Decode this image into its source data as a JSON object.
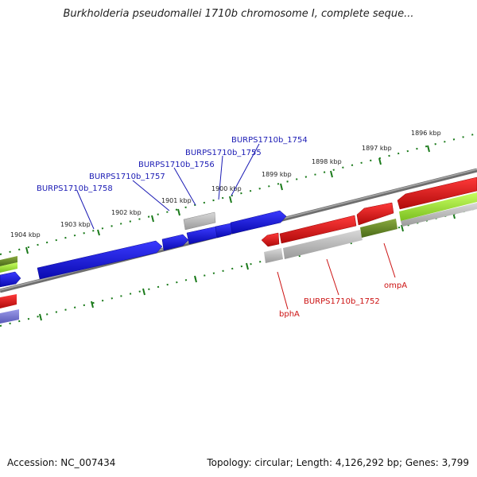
{
  "title": "Burkholderia pseudomallei 1710b chromosome I, complete seque...",
  "footer": {
    "accession": "Accession: NC_007434",
    "summary": "Topology: circular; Length: 4,126,292 bp; Genes: 3,799"
  },
  "scale": {
    "ticks": [
      "1904 kbp",
      "1903 kbp",
      "1902 kbp",
      "1901 kbp",
      "1900 kbp",
      "1899 kbp",
      "1898 kbp",
      "1897 kbp",
      "1896 kbp"
    ]
  },
  "genes_top": [
    {
      "label": "BURPS1710b_1758"
    },
    {
      "label": "BURPS1710b_1757"
    },
    {
      "label": "BURPS1710b_1756"
    },
    {
      "label": "BURPS1710b_1755"
    },
    {
      "label": "BURPS1710b_1754"
    }
  ],
  "genes_bottom": [
    {
      "label": "bphA"
    },
    {
      "label": "BURPS1710b_1752"
    },
    {
      "label": "ompA"
    }
  ],
  "colors": {
    "forward_gene": "#1a1ad6",
    "reverse_gene": "#e01010",
    "backbone": "#808080",
    "tick": "#1a7a1a",
    "pseudo_gene": "#b0b0b0",
    "rna_gene": "#7fc030",
    "olive_gene": "#6b8a2a",
    "label_top": "#1a1ab4",
    "label_bottom": "#cc1111"
  }
}
